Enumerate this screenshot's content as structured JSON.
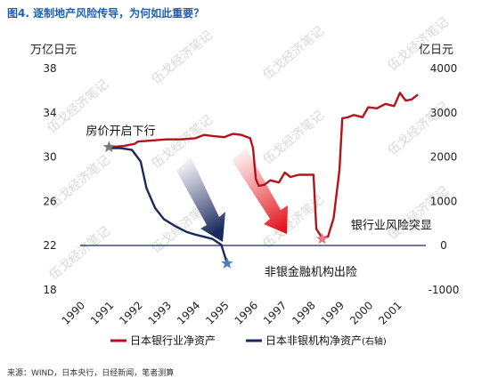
{
  "header": {
    "title": "图4. 逐制地产风险传导，为何如此重要？"
  },
  "source": "来源：WIND，日本央行，日经新闻，笔者测算",
  "watermark": "伍戈经济笔记",
  "chart_data": {
    "type": "line",
    "x_labels": [
      "1990",
      "1991",
      "1992",
      "1993",
      "1994",
      "1995",
      "1996",
      "1997",
      "1998",
      "1999",
      "2000",
      "2001"
    ],
    "xlim": [
      1990,
      2002
    ],
    "y_left": {
      "unit": "万亿日元",
      "lim": [
        18,
        38
      ],
      "ticks": [
        "38",
        "34",
        "30",
        "26",
        "22",
        "18"
      ]
    },
    "y_right": {
      "unit": "亿日元",
      "lim": [
        -1000,
        4000
      ],
      "ticks": [
        "4000",
        "3000",
        "2000",
        "1000",
        "0",
        "-1000"
      ]
    },
    "colors": {
      "banks": "#b5121b",
      "nonbanks": "#1b2a5e",
      "zero_line": "#1b2a5e"
    },
    "series": [
      {
        "name": "日本银行业净资产",
        "axis": "left",
        "x": [
          1991.0,
          1991.5,
          1991.9,
          1992.0,
          1992.5,
          1993.0,
          1993.5,
          1994.0,
          1994.3,
          1994.6,
          1995.0,
          1995.3,
          1995.6,
          1995.9,
          1996.0,
          1996.1,
          1996.2,
          1996.4,
          1996.6,
          1996.9,
          1997.1,
          1997.3,
          1997.6,
          1997.9,
          1998.1,
          1998.2,
          1998.4,
          1998.6,
          1998.8,
          1999.0,
          1999.1,
          1999.3,
          1999.5,
          1999.8,
          2000.0,
          2000.3,
          2000.6,
          2000.9,
          2001.1,
          2001.3,
          2001.5,
          2001.7
        ],
        "y": [
          30.9,
          31.0,
          31.2,
          31.4,
          31.5,
          31.6,
          31.6,
          31.7,
          32.0,
          31.9,
          31.8,
          32.1,
          32.0,
          31.7,
          30.8,
          28.0,
          27.4,
          27.5,
          27.9,
          27.7,
          28.6,
          28.2,
          28.4,
          28.4,
          28.4,
          23.5,
          22.7,
          22.8,
          24.5,
          28.8,
          33.5,
          33.6,
          33.8,
          33.6,
          34.5,
          34.4,
          34.8,
          34.6,
          35.8,
          35.1,
          35.2,
          35.6
        ]
      },
      {
        "name": "日本非银机构净资产（右轴）",
        "axis": "right",
        "x": [
          1991.0,
          1991.4,
          1991.8,
          1992.1,
          1992.3,
          1992.6,
          1992.9,
          1993.3,
          1993.7,
          1994.0,
          1994.3,
          1994.6,
          1994.9,
          1995.1
        ],
        "y": [
          2200,
          2200,
          2160,
          1900,
          1300,
          850,
          600,
          440,
          310,
          250,
          200,
          150,
          20,
          -400
        ]
      }
    ],
    "markers": [
      {
        "x": 1991.0,
        "axis": "left",
        "y": 30.9,
        "color": "#7a7a7a"
      },
      {
        "x": 1995.1,
        "axis": "right",
        "y": -400,
        "color": "#4a7fc1"
      },
      {
        "x": 1998.4,
        "axis": "left",
        "y": 22.6,
        "color": "#e37a84"
      }
    ],
    "annotations": [
      {
        "text": "房价开启下行",
        "x": 1990.2,
        "axis": "left",
        "y": 32.0
      },
      {
        "text": "非银金融机构出险",
        "x": 1996.4,
        "axis": "left",
        "y": 19.3
      },
      {
        "text": "银行业风险突显",
        "x": 1999.4,
        "axis": "left",
        "y": 23.5
      }
    ],
    "legend": [
      {
        "label": "日本银行业净资产",
        "color": "#b5121b"
      },
      {
        "label": "日本非银机构净资产",
        "suffix": "(右轴)",
        "color": "#1b2a5e"
      }
    ]
  }
}
